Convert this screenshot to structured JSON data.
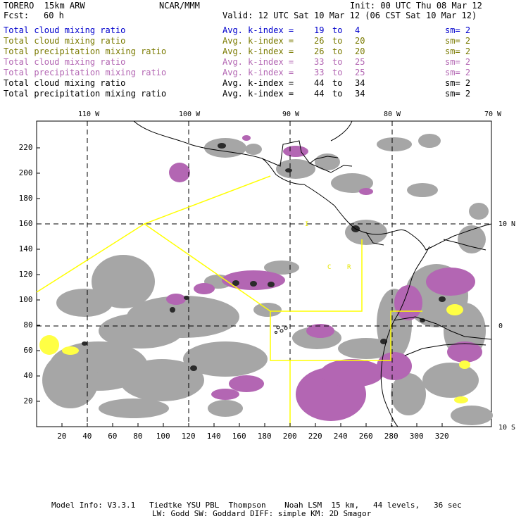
{
  "header": {
    "model": "TORERO  15km ARW",
    "org": "NCAR/MMM",
    "init": "Init: 00 UTC Thu 08 Mar 12",
    "fcst_label": "Fcst:",
    "fcst_value": "60 h",
    "valid": "Valid: 12 UTC Sat 10 Mar 12 (06 CST Sat 10 Mar 12)"
  },
  "legend": [
    {
      "name": "Total cloud mixing ratio",
      "kindex_label": "Avg. k-index =",
      "from": "19",
      "to_word": "to",
      "to": "4",
      "sm": "sm= 2",
      "color": "#0000cc"
    },
    {
      "name": "Total cloud mixing ratio",
      "kindex_label": "Avg. k-index =",
      "from": "26",
      "to_word": "to",
      "to": "20",
      "sm": "sm= 2",
      "color": "#7a7a00"
    },
    {
      "name": "Total precipitation mixing ratio",
      "kindex_label": "Avg. k-index =",
      "from": "26",
      "to_word": "to",
      "to": "20",
      "sm": "sm= 2",
      "color": "#7a7a00"
    },
    {
      "name": "Total cloud mixing ratio",
      "kindex_label": "Avg. k-index =",
      "from": "33",
      "to_word": "to",
      "to": "25",
      "sm": "sm= 2",
      "color": "#b366b3"
    },
    {
      "name": "Total precipitation mixing ratio",
      "kindex_label": "Avg. k-index =",
      "from": "33",
      "to_word": "to",
      "to": "25",
      "sm": "sm= 2",
      "color": "#b366b3"
    },
    {
      "name": "Total cloud mixing ratio",
      "kindex_label": "Avg. k-index =",
      "from": "44",
      "to_word": "to",
      "to": "34",
      "sm": "sm= 2",
      "color": "#000000"
    },
    {
      "name": "Total precipitation mixing ratio",
      "kindex_label": "Avg. k-index =",
      "from": "44",
      "to_word": "to",
      "to": "34",
      "sm": "sm= 2",
      "color": "#000000"
    }
  ],
  "map": {
    "lon_labels": [
      "110 W",
      "100 W",
      "90 W",
      "80 W",
      "70 W"
    ],
    "lat_labels": [
      "10 N",
      "0",
      "10 S"
    ],
    "x_ticks": [
      "20",
      "40",
      "60",
      "80",
      "100",
      "120",
      "140",
      "160",
      "180",
      "200",
      "220",
      "240",
      "260",
      "280",
      "300",
      "320"
    ],
    "y_ticks": [
      "20",
      "40",
      "60",
      "80",
      "100",
      "120",
      "140",
      "160",
      "180",
      "200",
      "220"
    ],
    "region_labels": [
      "I",
      "C",
      "R"
    ],
    "colors": {
      "cloud_gray": "#a6a6a6",
      "cloud_dark": "#2b2b2b",
      "purple": "#b366b3",
      "yellow": "#ffff44",
      "domain_line": "#ffff00"
    }
  },
  "footer": {
    "line1": "Model Info: V3.3.1   Tiedtke YSU PBL  Thompson    Noah LSM  15 km,   44 levels,   36 sec",
    "line2": "LW: Godd SW: Goddard DIFF: simple KM: 2D Smagor"
  }
}
